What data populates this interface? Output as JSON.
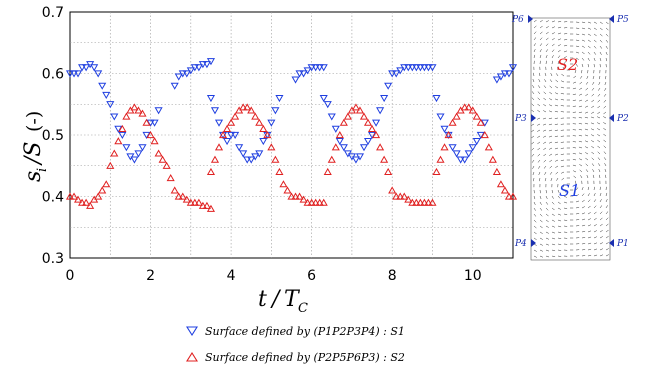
{
  "chart_data": {
    "type": "scatter",
    "xlabel": "t / T_C",
    "ylabel": "s_i / S (-)",
    "xlim": [
      0,
      11
    ],
    "ylim": [
      0.3,
      0.7
    ],
    "xticks": [
      "0",
      "2",
      "4",
      "6",
      "8",
      "10"
    ],
    "yticks": [
      "0.3",
      "0.4",
      "0.5",
      "0.6",
      "0.7"
    ],
    "grid": true,
    "legend_position": "bottom",
    "series": [
      {
        "name": "Surface defined by (P1P2P3P4) : S1",
        "marker": "triangle-down",
        "color": "#1f3fe0",
        "x": [
          0.0,
          0.1,
          0.2,
          0.3,
          0.4,
          0.5,
          0.6,
          0.7,
          0.8,
          0.9,
          1.0,
          1.1,
          1.2,
          1.3,
          1.4,
          1.5,
          1.6,
          1.7,
          1.8,
          1.9,
          2.0,
          2.1,
          2.2,
          2.6,
          2.7,
          2.8,
          2.9,
          3.0,
          3.1,
          3.2,
          3.3,
          3.4,
          3.5,
          3.5,
          3.6,
          3.7,
          3.8,
          3.9,
          4.0,
          4.1,
          4.2,
          4.3,
          4.4,
          4.5,
          4.6,
          4.7,
          4.8,
          4.9,
          5.0,
          5.1,
          5.2,
          5.6,
          5.7,
          5.8,
          5.9,
          6.0,
          6.1,
          6.2,
          6.3,
          6.3,
          6.4,
          6.5,
          6.6,
          6.7,
          6.8,
          6.9,
          7.0,
          7.1,
          7.2,
          7.3,
          7.4,
          7.5,
          7.6,
          7.7,
          7.8,
          7.9,
          8.0,
          8.1,
          8.2,
          8.3,
          8.4,
          8.5,
          8.6,
          8.7,
          8.8,
          8.9,
          9.0,
          9.1,
          9.2,
          9.3,
          9.4,
          9.5,
          9.6,
          9.7,
          9.8,
          9.9,
          10.0,
          10.1,
          10.2,
          10.3,
          10.6,
          10.7,
          10.8,
          10.9,
          11.0
        ],
        "y": [
          0.6,
          0.6,
          0.6,
          0.61,
          0.61,
          0.615,
          0.61,
          0.6,
          0.58,
          0.565,
          0.55,
          0.53,
          0.51,
          0.5,
          0.48,
          0.465,
          0.46,
          0.47,
          0.48,
          0.5,
          0.52,
          0.52,
          0.54,
          0.58,
          0.595,
          0.6,
          0.6,
          0.605,
          0.61,
          0.61,
          0.615,
          0.615,
          0.62,
          0.56,
          0.54,
          0.52,
          0.5,
          0.49,
          0.5,
          0.5,
          0.48,
          0.47,
          0.46,
          0.46,
          0.465,
          0.47,
          0.49,
          0.5,
          0.52,
          0.54,
          0.56,
          0.59,
          0.6,
          0.6,
          0.605,
          0.61,
          0.61,
          0.61,
          0.61,
          0.56,
          0.55,
          0.53,
          0.51,
          0.49,
          0.48,
          0.47,
          0.465,
          0.46,
          0.465,
          0.48,
          0.49,
          0.5,
          0.52,
          0.54,
          0.56,
          0.58,
          0.6,
          0.6,
          0.605,
          0.61,
          0.61,
          0.61,
          0.61,
          0.61,
          0.61,
          0.61,
          0.61,
          0.56,
          0.53,
          0.51,
          0.5,
          0.48,
          0.47,
          0.46,
          0.46,
          0.47,
          0.48,
          0.49,
          0.5,
          0.52,
          0.59,
          0.595,
          0.6,
          0.6,
          0.61
        ]
      },
      {
        "name": "Surface defined by (P2P5P6P3) : S2",
        "marker": "triangle-up",
        "color": "#e02020",
        "x": [
          0.0,
          0.1,
          0.2,
          0.3,
          0.4,
          0.5,
          0.6,
          0.7,
          0.8,
          0.9,
          1.0,
          1.1,
          1.2,
          1.3,
          1.4,
          1.5,
          1.6,
          1.7,
          1.8,
          1.9,
          2.0,
          2.1,
          2.2,
          2.3,
          2.4,
          2.5,
          2.6,
          2.7,
          2.8,
          2.9,
          3.0,
          3.1,
          3.2,
          3.3,
          3.4,
          3.5,
          3.5,
          3.6,
          3.7,
          3.8,
          3.9,
          4.0,
          4.1,
          4.2,
          4.3,
          4.4,
          4.5,
          4.6,
          4.7,
          4.8,
          4.9,
          5.0,
          5.1,
          5.2,
          5.3,
          5.4,
          5.5,
          5.6,
          5.7,
          5.8,
          5.9,
          6.0,
          6.1,
          6.2,
          6.3,
          6.4,
          6.5,
          6.6,
          6.7,
          6.8,
          6.9,
          7.0,
          7.1,
          7.2,
          7.3,
          7.4,
          7.5,
          7.6,
          7.7,
          7.8,
          7.9,
          8.0,
          8.1,
          8.2,
          8.3,
          8.4,
          8.5,
          8.6,
          8.7,
          8.8,
          8.9,
          9.0,
          9.1,
          9.2,
          9.3,
          9.4,
          9.5,
          9.6,
          9.7,
          9.8,
          9.9,
          10.0,
          10.1,
          10.2,
          10.3,
          10.4,
          10.5,
          10.6,
          10.7,
          10.8,
          10.9,
          11.0
        ],
        "y": [
          0.4,
          0.4,
          0.395,
          0.39,
          0.39,
          0.385,
          0.395,
          0.4,
          0.41,
          0.42,
          0.45,
          0.47,
          0.49,
          0.51,
          0.53,
          0.54,
          0.545,
          0.54,
          0.535,
          0.52,
          0.5,
          0.49,
          0.47,
          0.46,
          0.45,
          0.43,
          0.41,
          0.4,
          0.4,
          0.395,
          0.39,
          0.39,
          0.39,
          0.385,
          0.385,
          0.38,
          0.44,
          0.46,
          0.48,
          0.5,
          0.51,
          0.52,
          0.53,
          0.54,
          0.545,
          0.545,
          0.54,
          0.53,
          0.52,
          0.51,
          0.5,
          0.48,
          0.46,
          0.44,
          0.42,
          0.41,
          0.4,
          0.4,
          0.4,
          0.395,
          0.39,
          0.39,
          0.39,
          0.39,
          0.39,
          0.44,
          0.46,
          0.48,
          0.5,
          0.52,
          0.53,
          0.54,
          0.545,
          0.54,
          0.53,
          0.52,
          0.51,
          0.5,
          0.48,
          0.46,
          0.44,
          0.41,
          0.4,
          0.4,
          0.4,
          0.395,
          0.39,
          0.39,
          0.39,
          0.39,
          0.39,
          0.39,
          0.44,
          0.46,
          0.48,
          0.5,
          0.52,
          0.53,
          0.54,
          0.545,
          0.545,
          0.54,
          0.53,
          0.52,
          0.5,
          0.48,
          0.46,
          0.44,
          0.42,
          0.41,
          0.4,
          0.4
        ]
      }
    ]
  },
  "inset": {
    "points": [
      "P1",
      "P2",
      "P3",
      "P4",
      "P5",
      "P6"
    ],
    "regions": [
      {
        "label": "S2",
        "color": "#e02020"
      },
      {
        "label": "S1",
        "color": "#1f3fe0"
      }
    ]
  }
}
